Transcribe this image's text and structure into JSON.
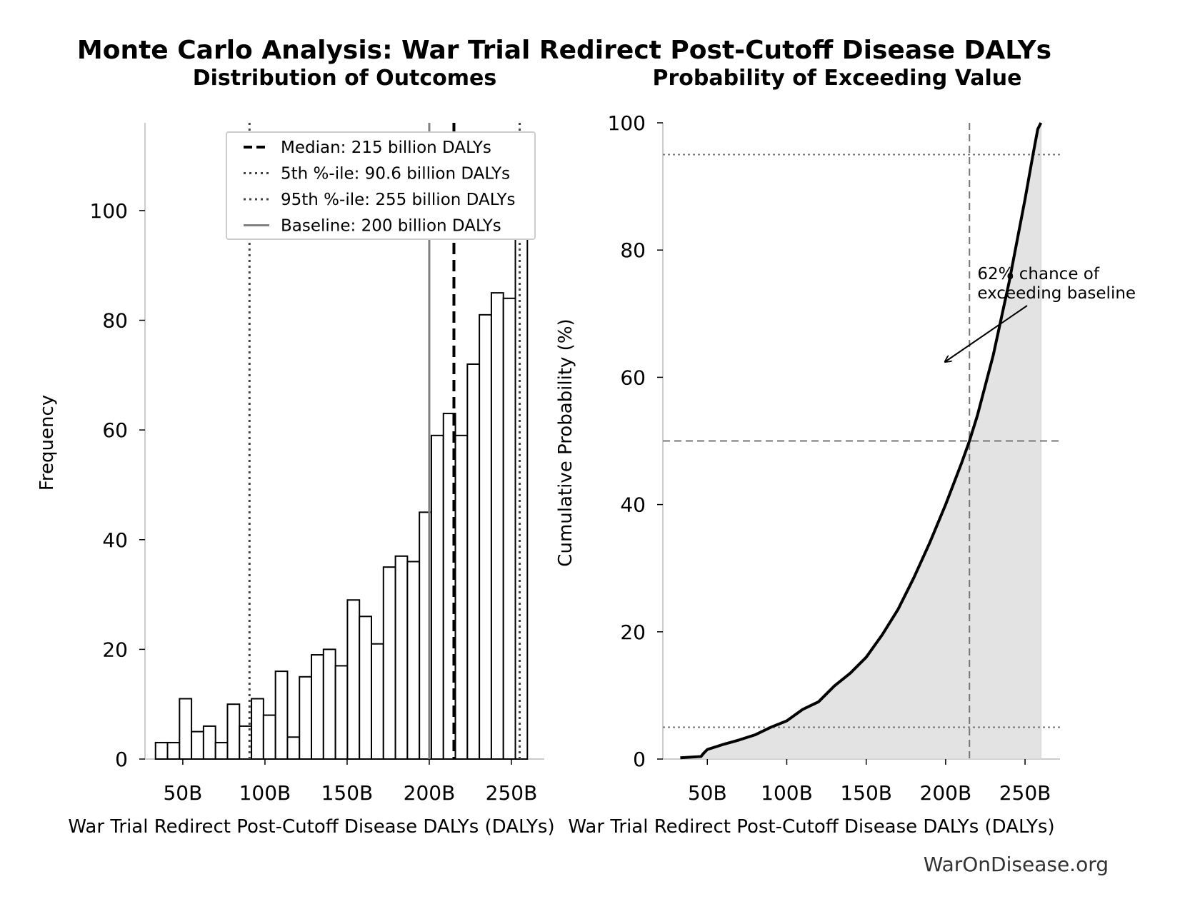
{
  "figure": {
    "title": "Monte Carlo Analysis: War Trial Redirect Post-Cutoff Disease DALYs",
    "watermark": "WarOnDisease.org"
  },
  "chart_data": [
    {
      "type": "bar",
      "subtitle": "Distribution of Outcomes",
      "xlabel": "War Trial Redirect Post-Cutoff Disease DALYs (DALYs)",
      "ylabel": "Frequency",
      "xlim": [
        27,
        270
      ],
      "ylim": [
        0,
        116
      ],
      "x_ticks": [
        50,
        100,
        150,
        200,
        250
      ],
      "x_tick_labels": [
        "50B",
        "100B",
        "150B",
        "200B",
        "250B"
      ],
      "y_ticks": [
        0,
        20,
        40,
        60,
        80,
        100
      ],
      "y_tick_labels": [
        "0",
        "20",
        "40",
        "60",
        "80",
        "100"
      ],
      "bin_edges": [
        33.4,
        40.7,
        48,
        55.3,
        62.6,
        69.9,
        77.2,
        84.5,
        91.8,
        99.1,
        106.4,
        113.7,
        121,
        128.3,
        135.6,
        142.9,
        150.2,
        157.5,
        164.8,
        172.1,
        179.4,
        186.7,
        194,
        201.3,
        208.6,
        215.9,
        223.2,
        230.5,
        237.8,
        245.1,
        252.4,
        259.7
      ],
      "values": [
        3,
        3,
        11,
        5,
        6,
        3,
        10,
        6,
        11,
        8,
        16,
        4,
        15,
        19,
        20,
        17,
        29,
        26,
        21,
        35,
        37,
        36,
        45,
        59,
        63,
        59,
        72,
        81,
        85,
        84,
        111
      ],
      "reference_lines": [
        {
          "name": "Median: 215 billion DALYs",
          "x": 215,
          "style": "dashed",
          "color": "#000000"
        },
        {
          "name": "5th %-ile: 90.6 billion DALYs",
          "x": 90.6,
          "style": "dotted",
          "color": "#444444"
        },
        {
          "name": "95th %-ile: 255 billion DALYs",
          "x": 255,
          "style": "dotted",
          "color": "#444444"
        },
        {
          "name": "Baseline: 200 billion DALYs",
          "x": 200,
          "style": "solid",
          "color": "#808080"
        }
      ],
      "legend_position": "top-right"
    },
    {
      "type": "area",
      "subtitle": "Probability of Exceeding Value",
      "xlabel": "War Trial Redirect Post-Cutoff Disease DALYs (DALYs)",
      "ylabel": "Cumulative Probability (%)",
      "xlim": [
        22,
        272
      ],
      "ylim": [
        0,
        100
      ],
      "x_ticks": [
        50,
        100,
        150,
        200,
        250
      ],
      "x_tick_labels": [
        "50B",
        "100B",
        "150B",
        "200B",
        "250B"
      ],
      "y_ticks": [
        0,
        20,
        40,
        60,
        80,
        100
      ],
      "y_tick_labels": [
        "0",
        "20",
        "40",
        "60",
        "80",
        "100"
      ],
      "x": [
        33,
        46,
        48,
        50,
        60,
        70,
        80,
        90,
        100,
        110,
        120,
        130,
        140,
        150,
        160,
        170,
        180,
        190,
        200,
        210,
        215,
        220,
        230,
        240,
        250,
        255,
        258,
        260
      ],
      "y": [
        0.2,
        0.4,
        1,
        1.5,
        2.3,
        3,
        3.8,
        5,
        6,
        7.8,
        9,
        11.5,
        13.5,
        16,
        19.5,
        23.5,
        28.5,
        34,
        40,
        46.5,
        50,
        54,
        63.5,
        75,
        88,
        95,
        99,
        100
      ],
      "hlines": [
        5,
        50,
        95
      ],
      "vline": 215,
      "annotation": {
        "text": [
          "62% chance of",
          "exceeding baseline"
        ],
        "xy": [
          200,
          62.5
        ],
        "xytext": [
          220,
          73
        ]
      }
    }
  ]
}
